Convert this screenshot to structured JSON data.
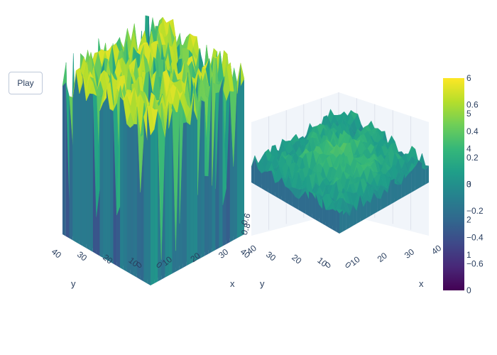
{
  "controls": {
    "play_label": "Play"
  },
  "chart_data": [
    {
      "type": "surface",
      "title": "",
      "xlabel": "x",
      "ylabel": "y",
      "zlabel": "",
      "x_ticks": [
        "0",
        "10",
        "20",
        "30",
        "40"
      ],
      "y_ticks": [
        "0",
        "10",
        "20",
        "30",
        "40"
      ],
      "z_ticks": [],
      "colorscale": "Viridis",
      "z_range": [
        0,
        6
      ],
      "description_values": "Random surface; most values near the top of range (about 5-6) with deep drops toward 0"
    },
    {
      "type": "surface",
      "title": "",
      "xlabel": "x",
      "ylabel": "y",
      "zlabel": "",
      "x_ticks": [
        "0",
        "10",
        "20",
        "30",
        "40"
      ],
      "y_ticks": [
        "0",
        "10",
        "20",
        "30",
        "40"
      ],
      "z_ticks": [
        "0.8",
        "0.6"
      ],
      "colorscale": "Viridis",
      "z_range": [
        -0.8,
        0.8
      ],
      "description_values": "Random surface; values around 0 to 0.4, higher in the centre"
    }
  ],
  "colorbar": {
    "outer_ticks": [
      "6",
      "5",
      "4",
      "3",
      "2",
      "1",
      "0"
    ],
    "outer_range": [
      0,
      6
    ],
    "inner_ticks": [
      "0.6",
      "0.4",
      "0.2",
      "0",
      "−0.2",
      "−0.4",
      "−0.6"
    ],
    "inner_range": [
      -0.8,
      0.8
    ]
  },
  "colors": {
    "viridis": [
      "#440154",
      "#482878",
      "#3e4989",
      "#31688e",
      "#26828e",
      "#1f9e89",
      "#35b779",
      "#6ece58",
      "#b5de2b",
      "#fde725"
    ],
    "grid": "#dfe3ec",
    "axis_text": "#2a3f5f"
  }
}
